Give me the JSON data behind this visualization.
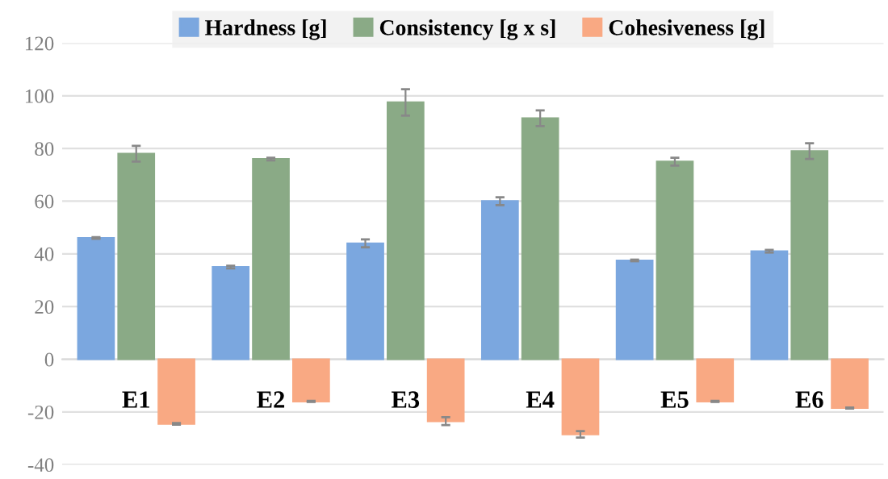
{
  "chart_data": {
    "type": "bar",
    "categories": [
      "E1",
      "E2",
      "E3",
      "E4",
      "E5",
      "E6"
    ],
    "series": [
      {
        "name": "Hardness [g]",
        "color": "#7ba7df",
        "values": [
          46,
          35,
          44,
          60,
          37.5,
          41
        ],
        "errors": [
          0.3,
          0.5,
          1.5,
          1.5,
          0.3,
          0.5
        ]
      },
      {
        "name": "Consistency [g x s]",
        "color": "#8aaa86",
        "values": [
          78,
          76,
          97.5,
          91.5,
          75,
          79
        ],
        "errors": [
          3,
          0.5,
          5,
          3,
          1.5,
          3
        ]
      },
      {
        "name": "Cohesiveness [g]",
        "color": "#f9a983",
        "values": [
          -24.5,
          -16,
          -23.5,
          -28.5,
          -16,
          -18.5
        ],
        "errors": [
          0.3,
          0.2,
          1.5,
          1.2,
          0.2,
          0.2
        ]
      }
    ],
    "ylim": [
      -40,
      120
    ],
    "yticks": [
      -40,
      -20,
      0,
      20,
      40,
      60,
      80,
      100,
      120
    ],
    "grid": "y",
    "legend": "top"
  }
}
